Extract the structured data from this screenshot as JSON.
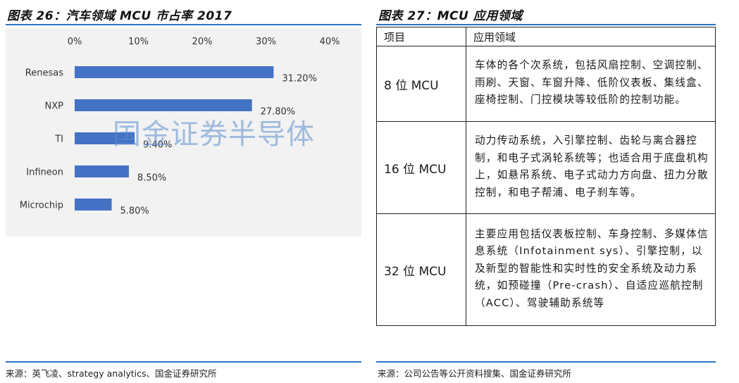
{
  "left": {
    "title": "图表 26：汽车领域 MCU 市占率 2017",
    "source": "来源：英飞凌、strategy analytics、国金证券研究所",
    "watermark": "国金证券半导体",
    "accent": "#4472c4"
  },
  "right": {
    "title": "图表 27：MCU 应用领域",
    "source": "来源：公司公告等公开资料搜集、国金证券研究所",
    "table": {
      "headers": [
        "项目",
        "应用领域"
      ],
      "rows": [
        {
          "key": "8 位 MCU",
          "value": "车体的各个次系统，包括风扇控制、空调控制、雨刷、天窗、车窗升降、低阶仪表板、集线盒、座椅控制、门控模块等较低阶的控制功能。"
        },
        {
          "key": "16 位 MCU",
          "value": "动力传动系统，入引擎控制、齿轮与离合器控制，和电子式涡轮系统等；也适合用于底盘机构上，如悬吊系统、电子式动力方向盘、扭力分散控制，和电子帮浦、电子刹车等。"
        },
        {
          "key": "32 位 MCU",
          "value": "主要应用包括仪表板控制、车身控制、多媒体信息系统（Infotainment sys）、引擎控制，以及新型的智能性和实时性的安全系统及动力系统，如预碰撞（Pre-crash）、自适应巡航控制（ACC）、驾驶辅助系统等"
        }
      ]
    }
  },
  "chart_data": {
    "type": "bar",
    "orientation": "horizontal",
    "title": "图表 26：汽车领域 MCU 市占率 2017",
    "categories": [
      "Renesas",
      "NXP",
      "TI",
      "Infineon",
      "Microchip"
    ],
    "values": [
      31.2,
      27.8,
      9.4,
      8.5,
      5.8
    ],
    "value_labels": [
      "31.20%",
      "27.80%",
      "9.40%",
      "8.50%",
      "5.80%"
    ],
    "xlim": [
      0,
      40
    ],
    "x_ticks": [
      "0%",
      "10%",
      "20%",
      "30%",
      "40%"
    ],
    "x_axis_position": "top",
    "grid": false,
    "bar_color": "#4472c4"
  }
}
